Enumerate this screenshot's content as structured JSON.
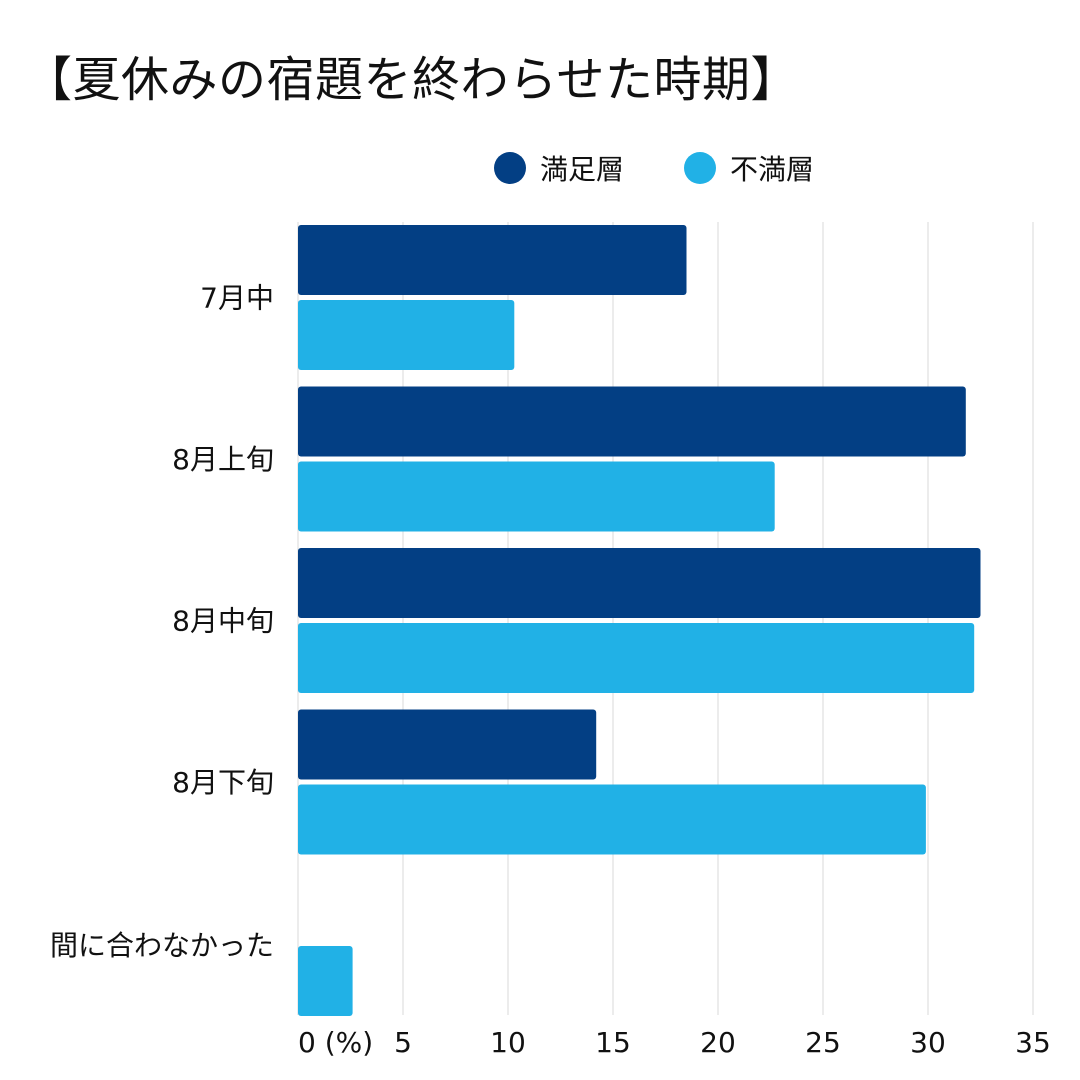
{
  "chart_data": {
    "type": "bar",
    "orientation": "horizontal",
    "title": "【夏休みの宿題を終わらせた時期】",
    "categories": [
      "7月中",
      "8月上旬",
      "8月中旬",
      "8月下旬",
      "間に合わなかった"
    ],
    "series": [
      {
        "name": "満足層",
        "color": "#033F84",
        "values": [
          18.5,
          31.8,
          32.5,
          14.2,
          0
        ]
      },
      {
        "name": "不満層",
        "color": "#21B1E6",
        "values": [
          10.3,
          22.7,
          32.2,
          29.9,
          2.6
        ]
      }
    ],
    "x_ticks": [
      "0 (%)",
      "5",
      "10",
      "15",
      "20",
      "25",
      "30",
      "35"
    ],
    "xlim": [
      0,
      35
    ],
    "grid": true,
    "legend_position": "top-right"
  }
}
